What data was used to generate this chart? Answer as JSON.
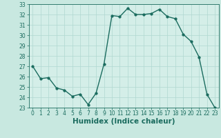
{
  "x": [
    0,
    1,
    2,
    3,
    4,
    5,
    6,
    7,
    8,
    9,
    10,
    11,
    12,
    13,
    14,
    15,
    16,
    17,
    18,
    19,
    20,
    21,
    22,
    23
  ],
  "y": [
    27.0,
    25.8,
    25.9,
    24.9,
    24.7,
    24.1,
    24.3,
    23.3,
    24.4,
    27.2,
    31.9,
    31.8,
    32.6,
    32.0,
    32.0,
    32.1,
    32.5,
    31.8,
    31.6,
    30.1,
    29.4,
    27.9,
    24.3,
    23.0
  ],
  "xlabel": "Humidex (Indice chaleur)",
  "ylim": [
    23,
    33
  ],
  "xlim": [
    -0.5,
    23.5
  ],
  "yticks": [
    23,
    24,
    25,
    26,
    27,
    28,
    29,
    30,
    31,
    32,
    33
  ],
  "xticks": [
    0,
    1,
    2,
    3,
    4,
    5,
    6,
    7,
    8,
    9,
    10,
    11,
    12,
    13,
    14,
    15,
    16,
    17,
    18,
    19,
    20,
    21,
    22,
    23
  ],
  "line_color": "#1a6b5e",
  "bg_color": "#c8e8e0",
  "grid_color": "#b0d8d0",
  "axes_bg": "#d4eee8",
  "marker_size": 2.5,
  "line_width": 1.0,
  "xlabel_fontsize": 7.5,
  "tick_fontsize": 5.5
}
